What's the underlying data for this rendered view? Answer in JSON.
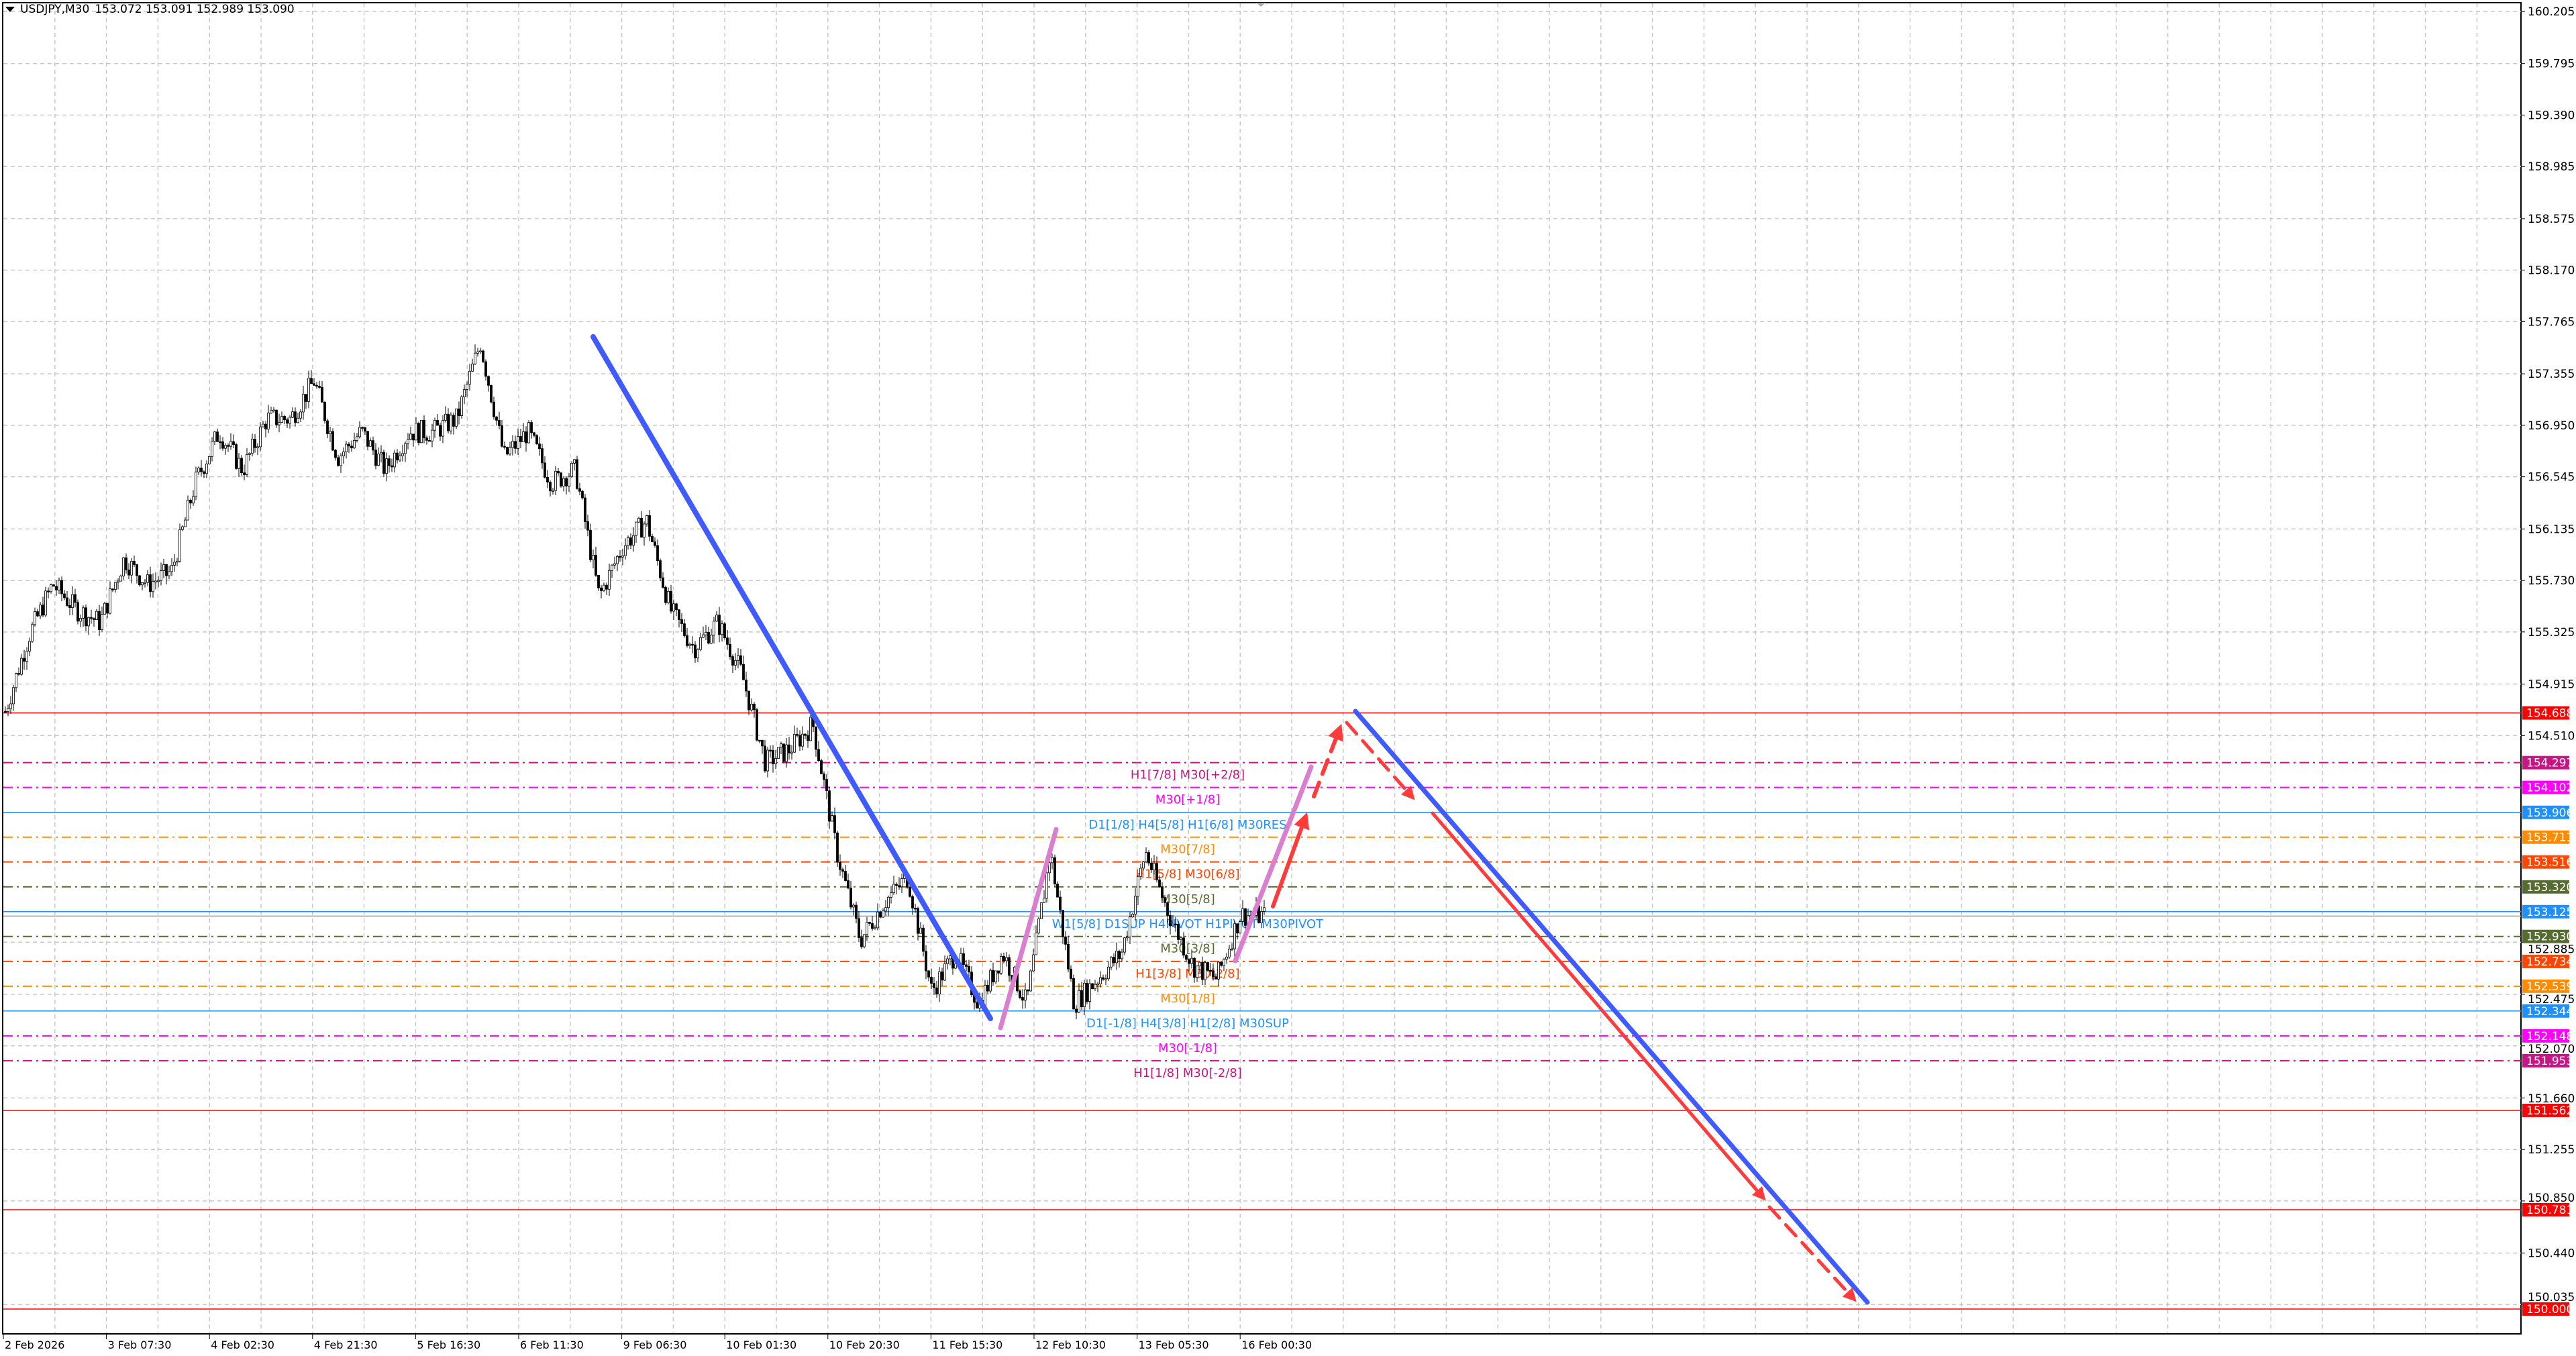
{
  "header": {
    "symbol": "USDJPY,M30",
    "ohlc": "153.072 153.091 152.989 153.090",
    "menu_icon": "triangle-down-icon"
  },
  "chart_data": {
    "type": "candlestick",
    "symbol": "USDJPY",
    "timeframe": "M30",
    "ylim": [
      150.0,
      160.205
    ],
    "grid": true,
    "price_ticks": [
      "160.205",
      "159.795",
      "159.390",
      "158.985",
      "158.575",
      "158.170",
      "157.765",
      "157.355",
      "156.950",
      "156.545",
      "156.135",
      "155.730",
      "155.325",
      "154.915",
      "154.510",
      "152.885",
      "152.475",
      "152.070",
      "151.660",
      "151.255",
      "150.850",
      "150.440",
      "150.035"
    ],
    "time_ticks": [
      "2 Feb 2026",
      "3 Feb 07:30",
      "4 Feb 02:30",
      "4 Feb 21:30",
      "5 Feb 16:30",
      "6 Feb 11:30",
      "9 Feb 06:30",
      "10 Feb 01:30",
      "10 Feb 20:30",
      "11 Feb 15:30",
      "12 Feb 10:30",
      "13 Feb 05:30",
      "16 Feb 00:30"
    ],
    "approx_price_path": [
      154.7,
      155.3,
      155.7,
      155.5,
      155.4,
      155.9,
      155.7,
      155.8,
      156.5,
      156.9,
      156.6,
      157.0,
      157.0,
      157.3,
      156.7,
      156.9,
      156.6,
      156.9,
      156.9,
      157.0,
      157.6,
      156.7,
      156.9,
      156.5,
      156.6,
      155.6,
      156.0,
      156.2,
      155.5,
      155.2,
      155.4,
      155.0,
      154.3,
      154.4,
      154.6,
      153.6,
      152.9,
      153.2,
      153.4,
      152.5,
      152.8,
      152.4,
      152.8,
      152.4,
      153.6,
      152.4,
      152.6,
      152.8,
      153.6,
      153.1,
      152.7,
      152.6,
      153.1,
      153.09
    ],
    "levels": [
      {
        "price": "154.688",
        "color": "#ff0000",
        "style": "solid",
        "label": ""
      },
      {
        "price": "154.297",
        "color": "#c71585",
        "style": "dashdot",
        "label": "H1[7/8] M30[+2/8]"
      },
      {
        "price": "154.102",
        "color": "#ff00ff",
        "style": "dashdot",
        "label": "M30[+1/8]"
      },
      {
        "price": "153.906",
        "color": "#1e90ff",
        "style": "solid",
        "label": "D1[1/8] H4[5/8] H1[6/8] M30RES"
      },
      {
        "price": "153.711",
        "color": "#ff8c00",
        "style": "dashdot",
        "label": "M30[7/8]"
      },
      {
        "price": "153.516",
        "color": "#ff4500",
        "style": "dashdot",
        "label": "H1[5/8] M30[6/8]"
      },
      {
        "price": "153.320",
        "color": "#556b2f",
        "style": "dashdot",
        "label": "M30[5/8]"
      },
      {
        "price": "153.125",
        "color": "#1e90ff",
        "style": "solid",
        "label": "W1[5/8] D1SUP H4PIVOT H1PIVOT M30PIVOT"
      },
      {
        "price": "152.930",
        "color": "#556b2f",
        "style": "dashdot",
        "label": "M30[3/8]"
      },
      {
        "price": "152.734",
        "color": "#ff4500",
        "style": "dashdot",
        "label": "H1[3/8] M30[2/8]"
      },
      {
        "price": "152.539",
        "color": "#ff8c00",
        "style": "dashdot",
        "label": "M30[1/8]"
      },
      {
        "price": "152.344",
        "color": "#1e90ff",
        "style": "solid",
        "label": "D1[-1/8] H4[3/8] H1[2/8] M30SUP"
      },
      {
        "price": "152.148",
        "color": "#ff00ff",
        "style": "dashdot",
        "label": "M30[-1/8]"
      },
      {
        "price": "151.953",
        "color": "#c71585",
        "style": "dashdot",
        "label": "H1[1/8] M30[-2/8]"
      },
      {
        "price": "151.562",
        "color": "#ff0000",
        "style": "solid",
        "label": ""
      },
      {
        "price": "150.781",
        "color": "#ff0000",
        "style": "solid",
        "label": ""
      },
      {
        "price": "150.000",
        "color": "#ff0000",
        "style": "solid",
        "label": ""
      }
    ],
    "current_price": 153.09,
    "colors": {
      "trend_blue": "#3f5bff",
      "projection_pink": "#da7fd0",
      "projection_red": "#ff3b3b",
      "grid": "#c0c0c0"
    }
  }
}
